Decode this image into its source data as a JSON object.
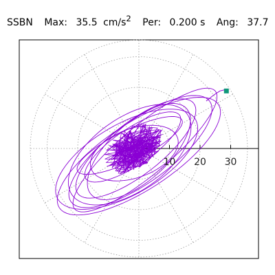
{
  "header": {
    "station": "SSBN",
    "max_label": "Max:",
    "max_value": "35.5",
    "max_unit": "cm/s",
    "max_unit_power": "2",
    "per_label": "Per:",
    "per_value": "0.200 s",
    "ang_label": "Ang:",
    "ang_value": "37.7"
  },
  "colors": {
    "trace": "#8a00d4",
    "marker": "#10987a",
    "grid": "#9a9a9a",
    "axis": "#000000",
    "frame": "#000000"
  },
  "chart_data": {
    "type": "scatter",
    "subtype": "polar particle-motion orbit",
    "radial_ticks": [
      "10",
      "20",
      "30"
    ],
    "radial_tick_values": [
      10,
      20,
      30
    ],
    "rlim": [
      0,
      35.5
    ],
    "grid": true,
    "angular_spokes_deg": [
      0,
      30,
      60,
      90,
      120,
      150,
      180,
      210,
      240,
      270,
      300,
      330
    ],
    "orbit_loops": [
      {
        "semi_major": 18.5,
        "semi_minor": 6.0,
        "rotation_deg": 34,
        "cx": -2.0,
        "cy": 0.5
      },
      {
        "semi_major": 24.0,
        "semi_minor": 8.5,
        "rotation_deg": 38,
        "cx": -1.0,
        "cy": 0.0
      },
      {
        "semi_major": 28.0,
        "semi_minor": 10.0,
        "rotation_deg": 36,
        "cx": 0.5,
        "cy": -1.0
      },
      {
        "semi_major": 31.0,
        "semi_minor": 11.0,
        "rotation_deg": 33,
        "cx": 0.0,
        "cy": -2.5
      },
      {
        "semi_major": 26.0,
        "semi_minor": 11.5,
        "rotation_deg": 30,
        "cx": -4.0,
        "cy": -3.5
      },
      {
        "semi_major": 21.0,
        "semi_minor": 9.5,
        "rotation_deg": 42,
        "cx": 0.0,
        "cy": -1.0
      },
      {
        "semi_major": 19.0,
        "semi_minor": 5.0,
        "rotation_deg": 26,
        "cx": -3.0,
        "cy": 1.0
      },
      {
        "semi_major": 30.0,
        "semi_minor": 8.0,
        "rotation_deg": 40,
        "cx": 2.0,
        "cy": -0.5
      },
      {
        "semi_major": 15.0,
        "semi_minor": 8.0,
        "rotation_deg": 20,
        "cx": -1.5,
        "cy": -1.5
      },
      {
        "semi_major": 23.0,
        "semi_minor": 12.0,
        "rotation_deg": 35,
        "cx": -3.0,
        "cy": -2.0
      }
    ],
    "tail_path": [
      {
        "x": 22.0,
        "y": 15.5
      },
      {
        "x": 24.5,
        "y": 17.5
      },
      {
        "x": 26.5,
        "y": 18.8
      },
      {
        "x": 28.0,
        "y": 19.2
      },
      {
        "x": 28.6,
        "y": 18.8
      }
    ],
    "end_point": {
      "x": 28.6,
      "y": 18.8
    }
  }
}
